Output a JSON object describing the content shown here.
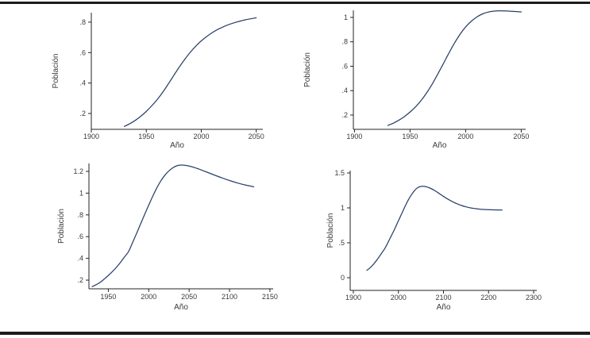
{
  "page": {
    "background": "#ffffff",
    "rule_color": "#1c1c1c"
  },
  "chart_data": [
    {
      "type": "line",
      "position": "top-left",
      "title": "",
      "xlabel": "Año",
      "ylabel": "Población",
      "line_color": "#2a4068",
      "axis_color": "#232323",
      "text_color": "#3a3a3a",
      "grid": false,
      "legend_position": "none",
      "xlim": [
        1900,
        2056
      ],
      "ylim": [
        0.096,
        0.862
      ],
      "x_ticks": {
        "values": [
          1900,
          1950,
          2000,
          2050
        ],
        "labels": [
          "1900",
          "1950",
          "2000",
          "2050"
        ]
      },
      "y_ticks": {
        "values": [
          0.2,
          0.4,
          0.6,
          0.8
        ],
        "labels": [
          ".2",
          ".4",
          ".6",
          ".8"
        ]
      },
      "series": [
        {
          "name": "poblacion",
          "points": [
            [
              1930,
              0.115
            ],
            [
              1935,
              0.133
            ],
            [
              1940,
              0.155
            ],
            [
              1945,
              0.182
            ],
            [
              1950,
              0.214
            ],
            [
              1955,
              0.251
            ],
            [
              1960,
              0.292
            ],
            [
              1965,
              0.34
            ],
            [
              1970,
              0.394
            ],
            [
              1975,
              0.45
            ],
            [
              1980,
              0.505
            ],
            [
              1985,
              0.556
            ],
            [
              1990,
              0.602
            ],
            [
              1995,
              0.642
            ],
            [
              2000,
              0.677
            ],
            [
              2005,
              0.706
            ],
            [
              2010,
              0.731
            ],
            [
              2015,
              0.752
            ],
            [
              2020,
              0.769
            ],
            [
              2025,
              0.784
            ],
            [
              2030,
              0.796
            ],
            [
              2035,
              0.806
            ],
            [
              2040,
              0.815
            ],
            [
              2045,
              0.822
            ],
            [
              2050,
              0.829
            ]
          ]
        }
      ]
    },
    {
      "type": "line",
      "position": "top-right",
      "title": "",
      "xlabel": "Año",
      "ylabel": "Población",
      "line_color": "#2a4068",
      "axis_color": "#232323",
      "text_color": "#3a3a3a",
      "grid": false,
      "legend_position": "none",
      "xlim": [
        1899,
        2054
      ],
      "ylim": [
        0.083,
        1.058
      ],
      "x_ticks": {
        "values": [
          1900,
          1950,
          2000,
          2050
        ],
        "labels": [
          "1900",
          "1950",
          "2000",
          "2050"
        ]
      },
      "y_ticks": {
        "values": [
          0.2,
          0.4,
          0.6,
          0.8,
          1.0
        ],
        "labels": [
          ".2",
          ".4",
          ".6",
          ".8",
          "1"
        ]
      },
      "series": [
        {
          "name": "poblacion",
          "points": [
            [
              1930,
              0.115
            ],
            [
              1935,
              0.134
            ],
            [
              1940,
              0.158
            ],
            [
              1945,
              0.188
            ],
            [
              1950,
              0.225
            ],
            [
              1955,
              0.268
            ],
            [
              1960,
              0.32
            ],
            [
              1965,
              0.383
            ],
            [
              1970,
              0.455
            ],
            [
              1975,
              0.537
            ],
            [
              1980,
              0.622
            ],
            [
              1985,
              0.708
            ],
            [
              1990,
              0.79
            ],
            [
              1995,
              0.862
            ],
            [
              2000,
              0.922
            ],
            [
              2005,
              0.968
            ],
            [
              2010,
              1.003
            ],
            [
              2015,
              1.028
            ],
            [
              2020,
              1.043
            ],
            [
              2025,
              1.051
            ],
            [
              2030,
              1.054
            ],
            [
              2035,
              1.053
            ],
            [
              2040,
              1.051
            ],
            [
              2045,
              1.048
            ],
            [
              2050,
              1.045
            ]
          ]
        }
      ]
    },
    {
      "type": "line",
      "position": "bottom-left",
      "title": "",
      "xlabel": "Año",
      "ylabel": "Población",
      "line_color": "#2a4068",
      "axis_color": "#232323",
      "text_color": "#3a3a3a",
      "grid": false,
      "legend_position": "none",
      "xlim": [
        1926,
        2154
      ],
      "ylim": [
        0.12,
        1.273
      ],
      "x_ticks": {
        "values": [
          1950,
          2000,
          2050,
          2100,
          2150
        ],
        "labels": [
          "1950",
          "2000",
          "2050",
          "2100",
          "2150"
        ]
      },
      "y_ticks": {
        "values": [
          0.2,
          0.4,
          0.6,
          0.8,
          1.0,
          1.2
        ],
        "labels": [
          ".2",
          ".4",
          ".6",
          ".8",
          "1",
          "1.2"
        ]
      },
      "series": [
        {
          "name": "poblacion",
          "points": [
            [
              1930,
              0.14
            ],
            [
              1935,
              0.158
            ],
            [
              1940,
              0.18
            ],
            [
              1945,
              0.21
            ],
            [
              1950,
              0.243
            ],
            [
              1955,
              0.278
            ],
            [
              1960,
              0.318
            ],
            [
              1965,
              0.363
            ],
            [
              1970,
              0.413
            ],
            [
              1975,
              0.462
            ],
            [
              1980,
              0.545
            ],
            [
              1985,
              0.63
            ],
            [
              1990,
              0.718
            ],
            [
              1995,
              0.805
            ],
            [
              2000,
              0.89
            ],
            [
              2005,
              0.972
            ],
            [
              2010,
              1.048
            ],
            [
              2015,
              1.113
            ],
            [
              2020,
              1.165
            ],
            [
              2025,
              1.205
            ],
            [
              2030,
              1.234
            ],
            [
              2035,
              1.252
            ],
            [
              2040,
              1.258
            ],
            [
              2045,
              1.256
            ],
            [
              2050,
              1.249
            ],
            [
              2060,
              1.227
            ],
            [
              2070,
              1.199
            ],
            [
              2080,
              1.17
            ],
            [
              2090,
              1.142
            ],
            [
              2100,
              1.116
            ],
            [
              2110,
              1.093
            ],
            [
              2120,
              1.074
            ],
            [
              2130,
              1.058
            ]
          ]
        }
      ]
    },
    {
      "type": "line",
      "position": "bottom-right",
      "title": "",
      "xlabel": "Año",
      "ylabel": "Población",
      "line_color": "#2a4068",
      "axis_color": "#232323",
      "text_color": "#3a3a3a",
      "grid": false,
      "legend_position": "none",
      "xlim": [
        1893,
        2307
      ],
      "ylim": [
        -0.182,
        1.534
      ],
      "x_ticks": {
        "values": [
          1900,
          2000,
          2100,
          2200,
          2300
        ],
        "labels": [
          "1900",
          "2000",
          "2100",
          "2200",
          "2300"
        ]
      },
      "y_ticks": {
        "values": [
          0,
          0.5,
          1.0,
          1.5
        ],
        "labels": [
          "0",
          ".5",
          "1",
          "1.5"
        ]
      },
      "series": [
        {
          "name": "poblacion",
          "points": [
            [
              1930,
              0.105
            ],
            [
              1935,
              0.13
            ],
            [
              1940,
              0.16
            ],
            [
              1945,
              0.195
            ],
            [
              1950,
              0.235
            ],
            [
              1955,
              0.278
            ],
            [
              1960,
              0.325
            ],
            [
              1965,
              0.372
            ],
            [
              1970,
              0.42
            ],
            [
              1975,
              0.48
            ],
            [
              1980,
              0.545
            ],
            [
              1985,
              0.61
            ],
            [
              1990,
              0.675
            ],
            [
              1995,
              0.745
            ],
            [
              2000,
              0.815
            ],
            [
              2005,
              0.885
            ],
            [
              2010,
              0.955
            ],
            [
              2015,
              1.025
            ],
            [
              2020,
              1.09
            ],
            [
              2025,
              1.148
            ],
            [
              2030,
              1.198
            ],
            [
              2035,
              1.242
            ],
            [
              2040,
              1.276
            ],
            [
              2045,
              1.297
            ],
            [
              2050,
              1.307
            ],
            [
              2055,
              1.31
            ],
            [
              2060,
              1.305
            ],
            [
              2070,
              1.284
            ],
            [
              2080,
              1.25
            ],
            [
              2090,
              1.208
            ],
            [
              2100,
              1.164
            ],
            [
              2110,
              1.124
            ],
            [
              2120,
              1.089
            ],
            [
              2130,
              1.059
            ],
            [
              2140,
              1.034
            ],
            [
              2150,
              1.015
            ],
            [
              2160,
              1.0
            ],
            [
              2170,
              0.99
            ],
            [
              2180,
              0.982
            ],
            [
              2190,
              0.977
            ],
            [
              2200,
              0.974
            ],
            [
              2210,
              0.972
            ],
            [
              2220,
              0.97
            ],
            [
              2230,
              0.969
            ]
          ]
        }
      ]
    }
  ]
}
